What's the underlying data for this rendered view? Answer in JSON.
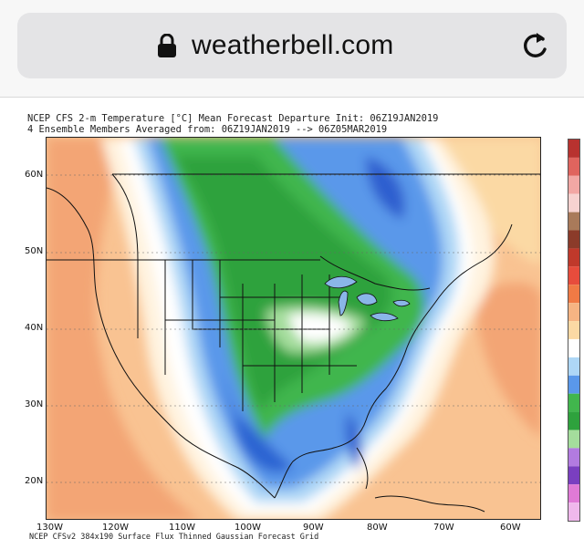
{
  "browser": {
    "domain": "weatherbell.com",
    "lock_icon": "lock-icon",
    "reload_icon": "reload-icon"
  },
  "map": {
    "title_line1": "NCEP CFS 2-m Temperature [°C] Mean Forecast Departure Init: 06Z19JAN2019",
    "title_line2": "4 Ensemble Members Averaged from: 06Z19JAN2019 --> 06Z05MAR2019",
    "footer": "NCEP CFSv2 384x190 Surface Flux Thinned Gaussian Forecast Grid",
    "lat_labels": [
      "60N",
      "50N",
      "40N",
      "30N",
      "20N"
    ],
    "lon_labels": [
      "130W",
      "120W",
      "110W",
      "100W",
      "90W",
      "80W",
      "70W",
      "60W"
    ],
    "colors": {
      "warm_orange": "#f7b07a",
      "light_orange": "#fcd9a8",
      "pale": "#fff5e0",
      "white": "#ffffff",
      "light_blue": "#a6d3f5",
      "blue": "#4f8fe6",
      "deep_blue": "#2458c8",
      "green": "#3db34a",
      "dark_green": "#229a35"
    }
  }
}
